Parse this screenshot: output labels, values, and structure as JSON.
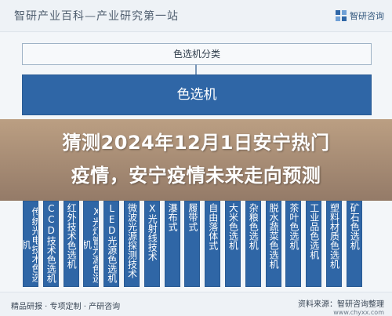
{
  "header": {
    "title": "智研产业百科—产业研究第一站",
    "brand_name": "智研咨询"
  },
  "diagram": {
    "category_title": "色选机分类",
    "root_label": "色选机",
    "categories": [
      {
        "label": "传统光电技术色选机"
      },
      {
        "label": "CCD技术色选机"
      },
      {
        "label": "红外技术色选机"
      },
      {
        "label": "X光灯管光源色选机"
      },
      {
        "label": "LED光源色选机"
      },
      {
        "label": "微波光源探测技术"
      },
      {
        "label": "X光射线技术"
      },
      {
        "label": "瀑布式"
      },
      {
        "label": "履带式"
      },
      {
        "label": "自由落体式"
      },
      {
        "label": "大米色选机"
      },
      {
        "label": "杂粮色选机"
      },
      {
        "label": "脱水蔬菜色选机"
      },
      {
        "label": "茶叶色选机"
      },
      {
        "label": "工业品色选机"
      },
      {
        "label": "塑料材质色选机"
      },
      {
        "label": "矿石色选机"
      }
    ]
  },
  "banner": {
    "line1": "猜测2024年12月1日安宁热门",
    "line2": "疫情，安宁疫情未来走向预测"
  },
  "footer": {
    "left_text": "精品研报 · 专项定制 · 产研咨询",
    "source": "资料来源：智研咨询整理",
    "url": "www.chyxx.com"
  },
  "colors": {
    "primary_blue": "#2f66a6",
    "banner_tan": "#a88b70"
  }
}
